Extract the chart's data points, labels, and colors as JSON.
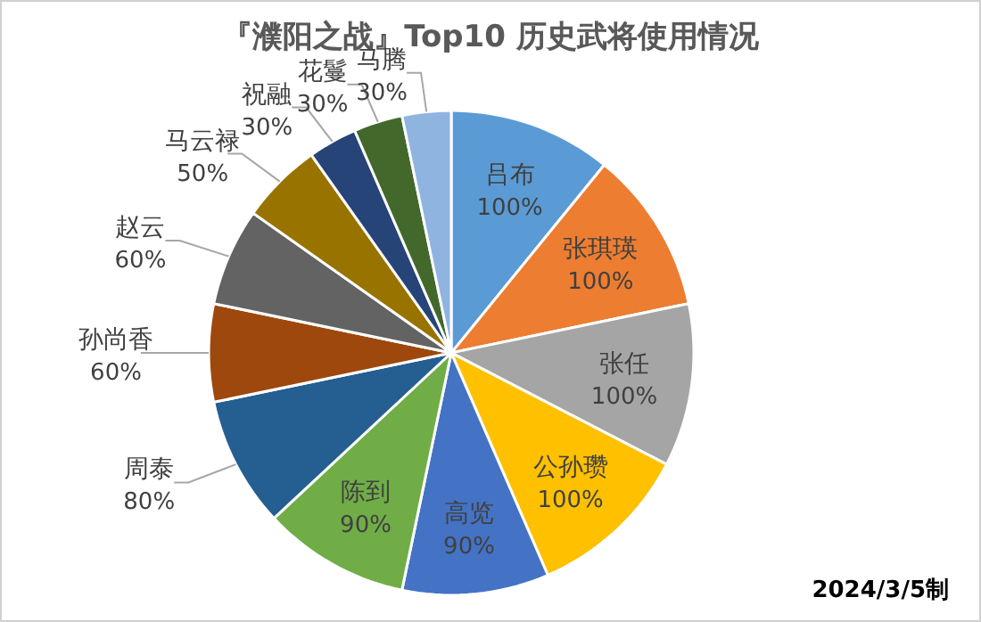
{
  "chart_data": {
    "type": "pie",
    "title": "『濮阳之战』Top10 历史武将使用情况",
    "categories": [
      "吕布",
      "张琪瑛",
      "张任",
      "公孙瓒",
      "高览",
      "陈到",
      "周泰",
      "孙尚香",
      "赵云",
      "马云禄",
      "祝融",
      "花鬘",
      "马腾"
    ],
    "values": [
      100,
      100,
      100,
      100,
      90,
      90,
      80,
      60,
      60,
      50,
      30,
      30,
      30
    ],
    "value_labels": [
      "100%",
      "100%",
      "100%",
      "100%",
      "90%",
      "90%",
      "80%",
      "60%",
      "60%",
      "50%",
      "30%",
      "30%",
      "30%"
    ],
    "colors": [
      "#5b9bd5",
      "#ed7d31",
      "#a5a5a5",
      "#ffc000",
      "#4472c4",
      "#70ad47",
      "#255e91",
      "#9e480e",
      "#636363",
      "#997300",
      "#264478",
      "#43682b",
      "#8fb4e0"
    ],
    "annotations": [
      "2024/3/5制"
    ]
  }
}
